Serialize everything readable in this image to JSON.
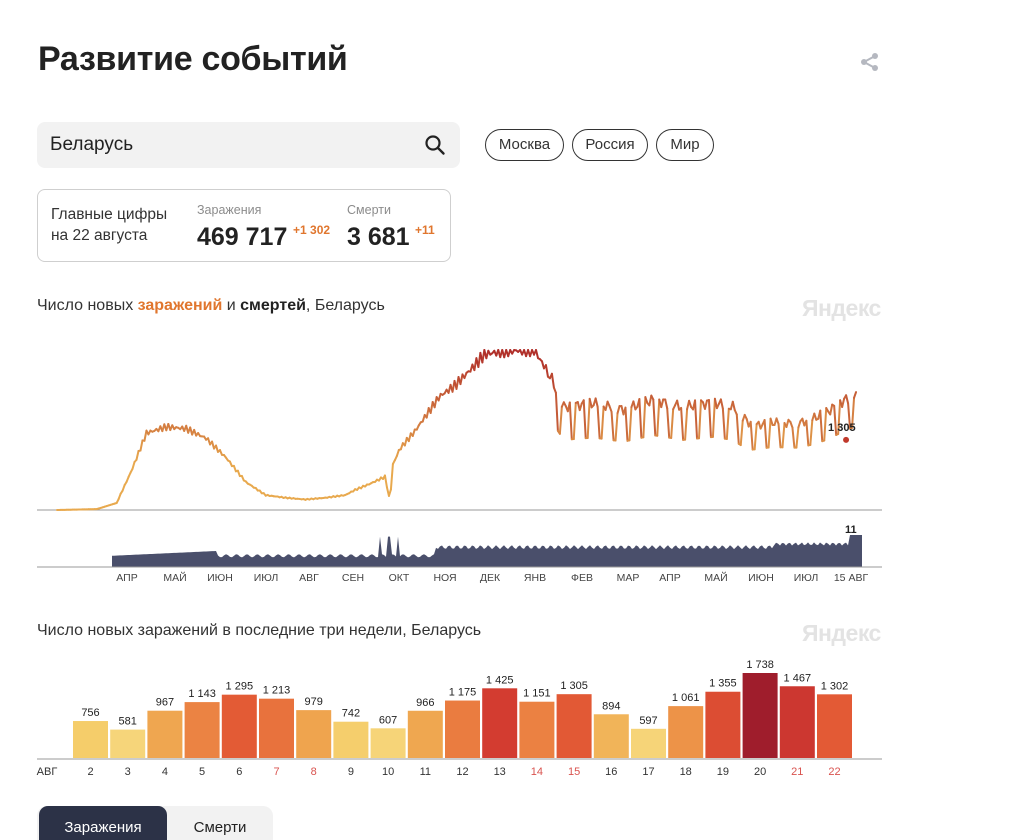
{
  "page": {
    "title": "Развитие событий"
  },
  "search": {
    "value": "Беларусь"
  },
  "chips": [
    "Москва",
    "Россия",
    "Мир"
  ],
  "stats": {
    "label_line1": "Главные цифры",
    "label_line2": "на 22 августа",
    "infections": {
      "caption": "Заражения",
      "value": "469 717",
      "delta": "+1 302"
    },
    "deaths": {
      "caption": "Смерти",
      "value": "3 681",
      "delta": "+11"
    }
  },
  "chart1_title": {
    "prefix": "Число новых ",
    "infections": "заражений",
    "middle": " и ",
    "deaths": "смертей",
    "suffix": ", Беларусь"
  },
  "chart2_title": "Число новых заражений в последние три недели, Беларусь",
  "watermark": "Яндекс",
  "tabs": [
    "Заражения",
    "Смерти"
  ],
  "colors": {
    "orange": "#e0762e",
    "navy": "#2c3247",
    "line_low": "#e8a94e",
    "line_high": "#b02f2a"
  },
  "chart_data": [
    {
      "type": "line",
      "title": "Число новых заражений и смертей, Беларусь",
      "x_ticks": [
        "АПР",
        "МАЙ",
        "ИЮН",
        "ИЮЛ",
        "АВГ",
        "СЕН",
        "ОКТ",
        "НОЯ",
        "ДЕК",
        "ЯНВ",
        "ФЕВ",
        "МАР",
        "АПР",
        "МАЙ",
        "ИЮН",
        "ИЮЛ",
        "15 АВГ"
      ],
      "series": [
        {
          "name": "заражений",
          "anchors": [
            [
              0,
              0
            ],
            [
              40,
              10
            ],
            [
              60,
              80
            ],
            [
              75,
              450
            ],
            [
              90,
              880
            ],
            [
              110,
              950
            ],
            [
              130,
              930
            ],
            [
              150,
              820
            ],
            [
              170,
              600
            ],
            [
              190,
              320
            ],
            [
              210,
              170
            ],
            [
              230,
              140
            ],
            [
              250,
              120
            ],
            [
              270,
              140
            ],
            [
              290,
              170
            ],
            [
              300,
              230
            ],
            [
              315,
              300
            ],
            [
              330,
              380
            ],
            [
              335,
              100
            ],
            [
              338,
              520
            ],
            [
              345,
              700
            ],
            [
              360,
              900
            ],
            [
              385,
              1300
            ],
            [
              400,
              1420
            ],
            [
              420,
              1650
            ],
            [
              430,
              1780
            ],
            [
              450,
              1820
            ],
            [
              470,
              1830
            ],
            [
              480,
              1830
            ],
            [
              495,
              1560
            ],
            [
              510,
              1180
            ],
            [
              540,
              1220
            ],
            [
              570,
              1150
            ],
            [
              600,
              1260
            ],
            [
              630,
              1180
            ],
            [
              660,
              1230
            ],
            [
              680,
              1180
            ],
            [
              700,
              960
            ],
            [
              720,
              1000
            ],
            [
              745,
              990
            ],
            [
              760,
              1040
            ],
            [
              775,
              1120
            ],
            [
              790,
              1240
            ],
            [
              800,
              1305
            ],
            [
              805,
              1380
            ]
          ],
          "annotation": "1 305"
        },
        {
          "name": "смертей",
          "peak_label": "11"
        }
      ]
    },
    {
      "type": "bar",
      "title": "Число новых заражений в последние три недели, Беларусь",
      "x_prefix": "АВГ",
      "categories": [
        "2",
        "3",
        "4",
        "5",
        "6",
        "7",
        "8",
        "9",
        "10",
        "11",
        "12",
        "13",
        "14",
        "15",
        "16",
        "17",
        "18",
        "19",
        "20",
        "21",
        "22"
      ],
      "values": [
        756,
        581,
        967,
        1143,
        1295,
        1213,
        979,
        742,
        607,
        966,
        1175,
        1425,
        1151,
        1305,
        894,
        597,
        1061,
        1355,
        1738,
        1467,
        1302
      ],
      "value_labels": [
        "756",
        "581",
        "967",
        "1 143",
        "1 295",
        "1 213",
        "979",
        "742",
        "607",
        "966",
        "1 175",
        "1 425",
        "1 151",
        "1 305",
        "894",
        "597",
        "1 061",
        "1 355",
        "1 738",
        "1 467",
        "1 302"
      ],
      "weekend_categories": [
        "7",
        "8",
        "14",
        "15",
        "21",
        "22"
      ]
    }
  ]
}
